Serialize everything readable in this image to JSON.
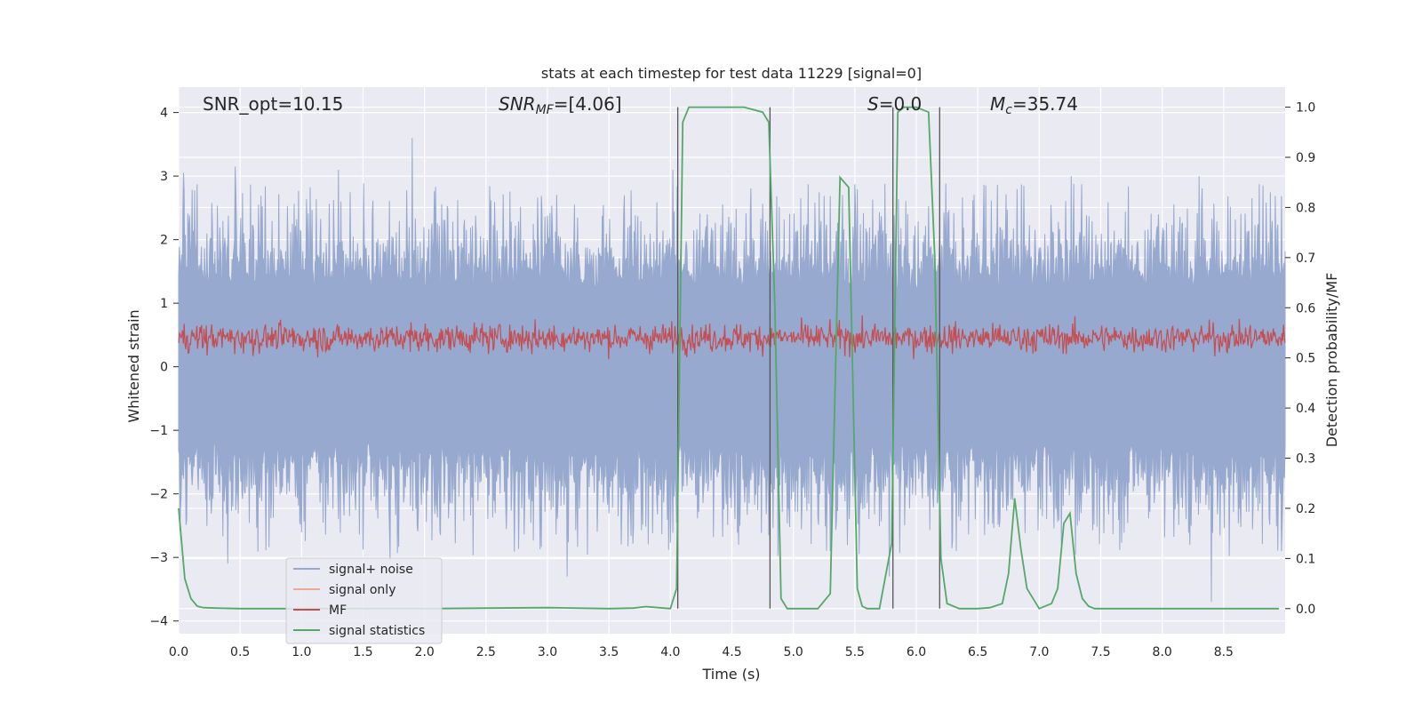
{
  "chart_data": {
    "type": "line",
    "title": "stats at each timestep for test data 11229 [signal=0]",
    "xlabel": "Time (s)",
    "ylabel": "Whitened strain",
    "ylabel_right": "Detection probability/MF",
    "xlim": [
      0,
      9
    ],
    "ylim": [
      -4.2,
      4.4
    ],
    "ylim_right": [
      -0.05,
      1.04
    ],
    "x_ticks": [
      "0.0",
      "0.5",
      "1.0",
      "1.5",
      "2.0",
      "2.5",
      "3.0",
      "3.5",
      "4.0",
      "4.5",
      "5.0",
      "5.5",
      "6.0",
      "6.5",
      "7.0",
      "7.5",
      "8.0",
      "8.5"
    ],
    "y_ticks": [
      "−4",
      "−3",
      "−2",
      "−1",
      "0",
      "1",
      "2",
      "3",
      "4"
    ],
    "y_right_ticks": [
      "0.0",
      "0.1",
      "0.2",
      "0.3",
      "0.4",
      "0.5",
      "0.6",
      "0.7",
      "0.8",
      "0.9",
      "1.0"
    ],
    "grid": true,
    "legend_position": "lower-left",
    "annotations": {
      "snr_opt": "SNR_opt=10.15",
      "snr_mf_main": "SNR",
      "snr_mf_sub": "MF",
      "snr_mf_rest": "=[4.06]",
      "s_main": "S",
      "s_rest": "=0.0",
      "mc_main": "M",
      "mc_sub": "c",
      "mc_rest": "=35.74"
    },
    "colors": {
      "background": "#eaeaf2",
      "grid": "#ffffff",
      "noise": "#97a9ce",
      "signal_only": "#eeaa8f",
      "mf": "#c44e52",
      "stat": "#55a868",
      "vline": "#555555"
    },
    "series": [
      {
        "name": "signal+ noise",
        "axis": "left",
        "description_ranges": {
          "upper_envelope": [
            1.5,
            3.8
          ],
          "lower_envelope": [
            -1.2,
            -3.8
          ]
        },
        "peaks": [
          [
            0.04,
            3.05
          ],
          [
            0.46,
            3.15
          ],
          [
            1.3,
            3.1
          ],
          [
            1.9,
            3.6
          ],
          [
            4.02,
            3.1
          ],
          [
            7.26,
            3.0
          ],
          [
            8.3,
            3.0
          ],
          [
            8.82,
            2.85
          ],
          [
            8.4,
            -3.7
          ],
          [
            3.16,
            -3.3
          ],
          [
            0.4,
            -3.1
          ],
          [
            1.72,
            -3.05
          ],
          [
            5.78,
            -3.3
          ]
        ]
      },
      {
        "name": "signal only",
        "axis": "left",
        "values": []
      },
      {
        "name": "MF",
        "axis": "right",
        "range": [
          0.5,
          0.58
        ]
      },
      {
        "name": "signal statistics",
        "axis": "right",
        "x": [
          0.0,
          0.05,
          0.1,
          0.15,
          0.2,
          0.3,
          0.5,
          1.0,
          2.0,
          3.0,
          3.5,
          3.7,
          3.8,
          3.9,
          4.0,
          4.05,
          4.1,
          4.15,
          4.2,
          4.4,
          4.6,
          4.75,
          4.8,
          4.85,
          4.9,
          4.95,
          5.0,
          5.1,
          5.2,
          5.3,
          5.38,
          5.45,
          5.52,
          5.56,
          5.6,
          5.65,
          5.7,
          5.8,
          5.85,
          5.9,
          5.95,
          6.0,
          6.1,
          6.15,
          6.2,
          6.25,
          6.3,
          6.35,
          6.4,
          6.5,
          6.6,
          6.7,
          6.75,
          6.8,
          6.85,
          6.9,
          7.0,
          7.1,
          7.15,
          7.2,
          7.25,
          7.3,
          7.35,
          7.4,
          7.45,
          7.5,
          7.6,
          8.0,
          8.5,
          8.95
        ],
        "values": [
          0.2,
          0.06,
          0.02,
          0.005,
          0.002,
          0.001,
          0.0,
          0.0,
          0.0,
          0.002,
          0.0,
          0.001,
          0.004,
          0.002,
          0.0,
          0.04,
          0.97,
          1.0,
          1.0,
          1.0,
          1.0,
          0.99,
          0.97,
          0.6,
          0.02,
          0.0,
          0.0,
          0.0,
          0.0,
          0.03,
          0.86,
          0.84,
          0.04,
          0.005,
          0.0,
          0.0,
          0.0,
          0.13,
          0.99,
          1.0,
          1.0,
          1.0,
          0.99,
          0.7,
          0.1,
          0.01,
          0.005,
          0.0,
          0.0,
          0.0,
          0.002,
          0.01,
          0.07,
          0.22,
          0.12,
          0.04,
          0.0,
          0.01,
          0.04,
          0.17,
          0.19,
          0.07,
          0.02,
          0.005,
          0.0,
          0.0,
          0.0,
          0.0,
          0.0,
          0.0
        ]
      }
    ],
    "vertical_lines_x": [
      4.06,
      4.81,
      5.81,
      6.19
    ],
    "vertical_lines_range_right": [
      0.0,
      1.0
    ]
  },
  "legend": {
    "items": [
      {
        "label": "signal+ noise",
        "color": "#97a9ce"
      },
      {
        "label": "signal only",
        "color": "#eeaa8f"
      },
      {
        "label": "MF",
        "color": "#c44e52"
      },
      {
        "label": "signal statistics",
        "color": "#55a868"
      }
    ]
  }
}
